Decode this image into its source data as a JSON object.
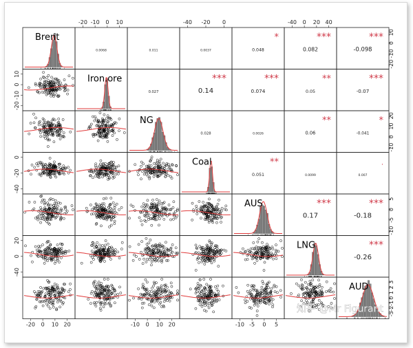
{
  "chart_data": {
    "type": "scatter_matrix",
    "title": "",
    "variables": [
      "Brent",
      "Iron.ore",
      "NG",
      "Coal",
      "AUS",
      "LNG",
      "AUD"
    ],
    "correlations": [
      {
        "row": 0,
        "col": 1,
        "value": "0.0068",
        "stars": ""
      },
      {
        "row": 0,
        "col": 2,
        "value": "0.011",
        "stars": ""
      },
      {
        "row": 0,
        "col": 3,
        "value": "0.0037",
        "stars": ""
      },
      {
        "row": 0,
        "col": 4,
        "value": "0.048",
        "stars": "*"
      },
      {
        "row": 0,
        "col": 5,
        "value": "0.082",
        "stars": "***"
      },
      {
        "row": 0,
        "col": 6,
        "value": "-0.098",
        "stars": "***"
      },
      {
        "row": 1,
        "col": 2,
        "value": "0.027",
        "stars": ""
      },
      {
        "row": 1,
        "col": 3,
        "value": "0.14",
        "stars": "***"
      },
      {
        "row": 1,
        "col": 4,
        "value": "0.074",
        "stars": "***"
      },
      {
        "row": 1,
        "col": 5,
        "value": "0.05",
        "stars": "**"
      },
      {
        "row": 1,
        "col": 6,
        "value": "-0.07",
        "stars": "***"
      },
      {
        "row": 2,
        "col": 3,
        "value": "0.028",
        "stars": ""
      },
      {
        "row": 2,
        "col": 4,
        "value": "0.0026",
        "stars": ""
      },
      {
        "row": 2,
        "col": 5,
        "value": "0.06",
        "stars": "**"
      },
      {
        "row": 2,
        "col": 6,
        "value": "-0.041",
        "stars": "*"
      },
      {
        "row": 3,
        "col": 4,
        "value": "0.051",
        "stars": "**"
      },
      {
        "row": 3,
        "col": 5,
        "value": "0.0099",
        "stars": ""
      },
      {
        "row": 3,
        "col": 6,
        "value": "0.007",
        "stars": "."
      },
      {
        "row": 4,
        "col": 5,
        "value": "0.17",
        "stars": "***"
      },
      {
        "row": 4,
        "col": 6,
        "value": "-0.18",
        "stars": "***"
      },
      {
        "row": 5,
        "col": 6,
        "value": "-0.26",
        "stars": "***"
      }
    ],
    "axis_ticks": {
      "top": [
        {
          "col": 1,
          "labels": [
            "-20",
            "-10",
            "0",
            "10"
          ]
        },
        {
          "col": 3,
          "labels": [
            "-40",
            "-20",
            "0"
          ]
        },
        {
          "col": 5,
          "labels": [
            "-40",
            "0",
            "20",
            "40"
          ]
        }
      ],
      "bottom": [
        {
          "col": 0,
          "labels": [
            "-20",
            "0",
            "10",
            "20"
          ]
        },
        {
          "col": 2,
          "labels": [
            "-10",
            "0",
            "10",
            "20"
          ]
        },
        {
          "col": 4,
          "labels": [
            "-10",
            "-5",
            "0",
            "5"
          ]
        }
      ],
      "left": [
        {
          "row": 1,
          "labels": [
            "10",
            "0",
            "-10",
            "-20"
          ]
        },
        {
          "row": 3,
          "labels": [
            "0",
            "-20",
            "-40"
          ]
        },
        {
          "row": 5,
          "labels": [
            "20",
            "0",
            "-40"
          ]
        }
      ],
      "right": [
        {
          "row": 0,
          "labels": [
            "10",
            "0",
            "-10",
            "-20"
          ]
        },
        {
          "row": 2,
          "labels": [
            "20",
            "10",
            "0",
            "-10"
          ]
        },
        {
          "row": 4,
          "labels": [
            "5",
            "0",
            "-5",
            "-10"
          ]
        },
        {
          "row": 6,
          "labels": [
            "3",
            "2",
            "1",
            "0",
            "-1",
            "-2",
            "-3"
          ]
        }
      ]
    },
    "colors": {
      "points": "#000000",
      "smooth": "#e03a3a",
      "histogram": "#8c8c8c",
      "density": "#e03a3a",
      "stars": "#d03b4a"
    }
  },
  "watermark": "知乎 @Mr Figurant"
}
